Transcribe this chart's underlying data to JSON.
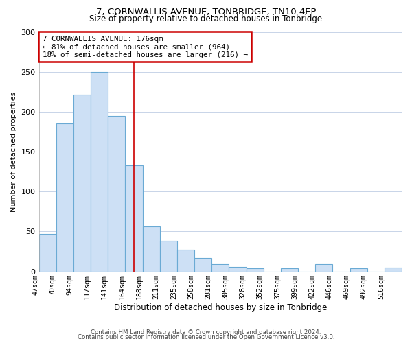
{
  "title": "7, CORNWALLIS AVENUE, TONBRIDGE, TN10 4EP",
  "subtitle": "Size of property relative to detached houses in Tonbridge",
  "xlabel": "Distribution of detached houses by size in Tonbridge",
  "ylabel": "Number of detached properties",
  "bar_labels": [
    "47sqm",
    "70sqm",
    "94sqm",
    "117sqm",
    "141sqm",
    "164sqm",
    "188sqm",
    "211sqm",
    "235sqm",
    "258sqm",
    "281sqm",
    "305sqm",
    "328sqm",
    "352sqm",
    "375sqm",
    "399sqm",
    "422sqm",
    "446sqm",
    "469sqm",
    "492sqm",
    "516sqm"
  ],
  "bar_heights": [
    47,
    185,
    221,
    250,
    195,
    133,
    56,
    38,
    27,
    17,
    9,
    6,
    4,
    0,
    4,
    0,
    9,
    0,
    4,
    0,
    5
  ],
  "bar_color": "#cde0f5",
  "bar_edge_color": "#6aaad4",
  "property_line_x": 5.5,
  "annotation_title": "7 CORNWALLIS AVENUE: 176sqm",
  "annotation_line1": "← 81% of detached houses are smaller (964)",
  "annotation_line2": "18% of semi-detached houses are larger (216) →",
  "annotation_box_color": "#cc0000",
  "vline_color": "#cc0000",
  "ylim": [
    0,
    300
  ],
  "yticks": [
    0,
    50,
    100,
    150,
    200,
    250,
    300
  ],
  "footer1": "Contains HM Land Registry data © Crown copyright and database right 2024.",
  "footer2": "Contains public sector information licensed under the Open Government Licence v3.0.",
  "bg_color": "#ffffff",
  "grid_color": "#c8d4e8"
}
